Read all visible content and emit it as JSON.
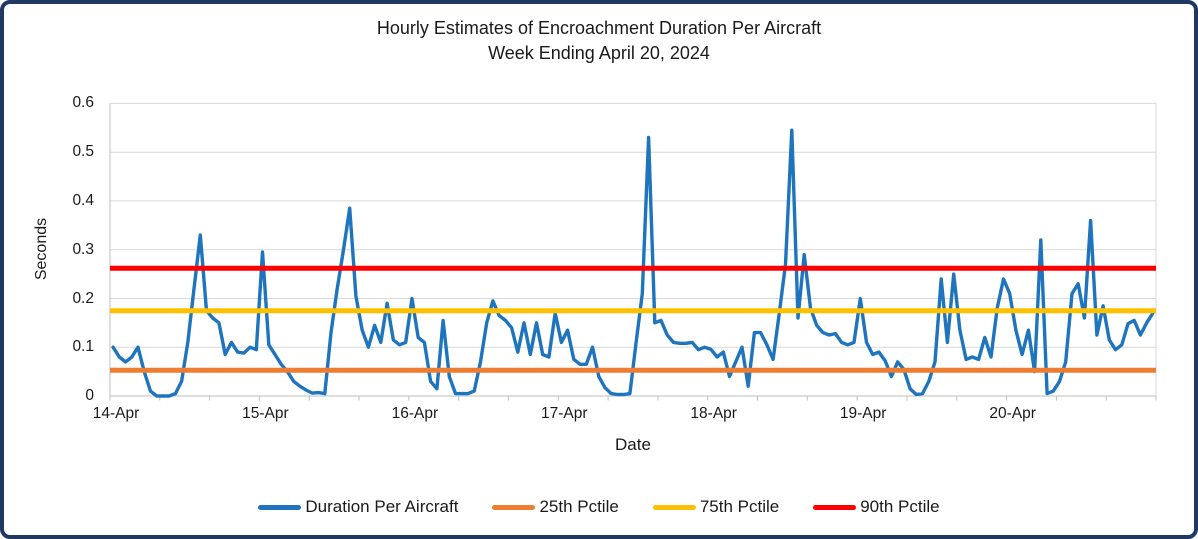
{
  "title": {
    "line1": "Hourly Estimates of Encroachment Duration Per Aircraft",
    "line2": "Week Ending April 20, 2024"
  },
  "y_axis": {
    "label": "Seconds",
    "ticks": [
      "0",
      "0.1",
      "0.2",
      "0.3",
      "0.4",
      "0.5",
      "0.6"
    ]
  },
  "x_axis": {
    "label": "Date",
    "tick_labels": [
      "14-Apr",
      "15-Apr",
      "16-Apr",
      "17-Apr",
      "18-Apr",
      "19-Apr",
      "20-Apr"
    ]
  },
  "legend": [
    {
      "label": "Duration Per Aircraft",
      "color": "#1e74bd"
    },
    {
      "label": "25th Pctile",
      "color": "#ed7d31"
    },
    {
      "label": "75th Pctile",
      "color": "#ffc000"
    },
    {
      "label": "90th Pctile",
      "color": "#ff0000"
    }
  ],
  "colors": {
    "border": "#1f3864",
    "gridline": "#d9d9d9",
    "axis_line": "#bfbfbf",
    "text": "#1a1a1a"
  },
  "chart_data": {
    "type": "line",
    "title": "Hourly Estimates of Encroachment Duration Per Aircraft — Week Ending April 20, 2024",
    "xlabel": "Date",
    "ylabel": "Seconds",
    "ylim": [
      0,
      0.6
    ],
    "grid": "horizontal",
    "legend_position": "bottom",
    "x_unit": "hour",
    "points_per_day": 24,
    "day_categories": [
      "14-Apr",
      "15-Apr",
      "16-Apr",
      "17-Apr",
      "18-Apr",
      "19-Apr",
      "20-Apr"
    ],
    "series": [
      {
        "name": "Duration Per Aircraft",
        "style": "line",
        "color": "#1e74bd",
        "values": [
          0.1,
          0.08,
          0.07,
          0.08,
          0.1,
          0.05,
          0.01,
          0,
          0,
          0,
          0.005,
          0.03,
          0.11,
          0.22,
          0.33,
          0.175,
          0.16,
          0.15,
          0.085,
          0.11,
          0.09,
          0.088,
          0.1,
          0.095,
          0.295,
          0.105,
          0.085,
          0.065,
          0.05,
          0.03,
          0.02,
          0.012,
          0.006,
          0.007,
          0.005,
          0.13,
          0.22,
          0.3,
          0.385,
          0.205,
          0.135,
          0.1,
          0.145,
          0.11,
          0.19,
          0.115,
          0.105,
          0.11,
          0.2,
          0.12,
          0.11,
          0.03,
          0.015,
          0.155,
          0.04,
          0.005,
          0.005,
          0.005,
          0.01,
          0.07,
          0.15,
          0.195,
          0.165,
          0.155,
          0.14,
          0.09,
          0.15,
          0.085,
          0.15,
          0.085,
          0.08,
          0.17,
          0.11,
          0.135,
          0.075,
          0.065,
          0.065,
          0.1,
          0.04,
          0.017,
          0.005,
          0.003,
          0.003,
          0.005,
          0.11,
          0.21,
          0.53,
          0.15,
          0.155,
          0.125,
          0.11,
          0.108,
          0.108,
          0.11,
          0.095,
          0.1,
          0.096,
          0.08,
          0.09,
          0.04,
          0.07,
          0.1,
          0.02,
          0.13,
          0.13,
          0.105,
          0.075,
          0.17,
          0.27,
          0.545,
          0.16,
          0.29,
          0.18,
          0.145,
          0.13,
          0.125,
          0.128,
          0.11,
          0.105,
          0.11,
          0.2,
          0.11,
          0.085,
          0.09,
          0.072,
          0.04,
          0.07,
          0.055,
          0.015,
          0.003,
          0.005,
          0.03,
          0.07,
          0.24,
          0.11,
          0.25,
          0.135,
          0.075,
          0.08,
          0.075,
          0.12,
          0.08,
          0.18,
          0.24,
          0.21,
          0.135,
          0.085,
          0.135,
          0.05,
          0.32,
          0.005,
          0.01,
          0.03,
          0.07,
          0.21,
          0.23,
          0.16,
          0.36,
          0.125,
          0.185,
          0.115,
          0.095,
          0.105,
          0.148,
          0.155,
          0.125,
          0.15,
          0.17
        ]
      },
      {
        "name": "25th Pctile",
        "style": "hline",
        "color": "#ed7d31",
        "value": 0.053
      },
      {
        "name": "75th Pctile",
        "style": "hline",
        "color": "#ffc000",
        "value": 0.175
      },
      {
        "name": "90th Pctile",
        "style": "hline",
        "color": "#ff0000",
        "value": 0.262
      }
    ]
  }
}
